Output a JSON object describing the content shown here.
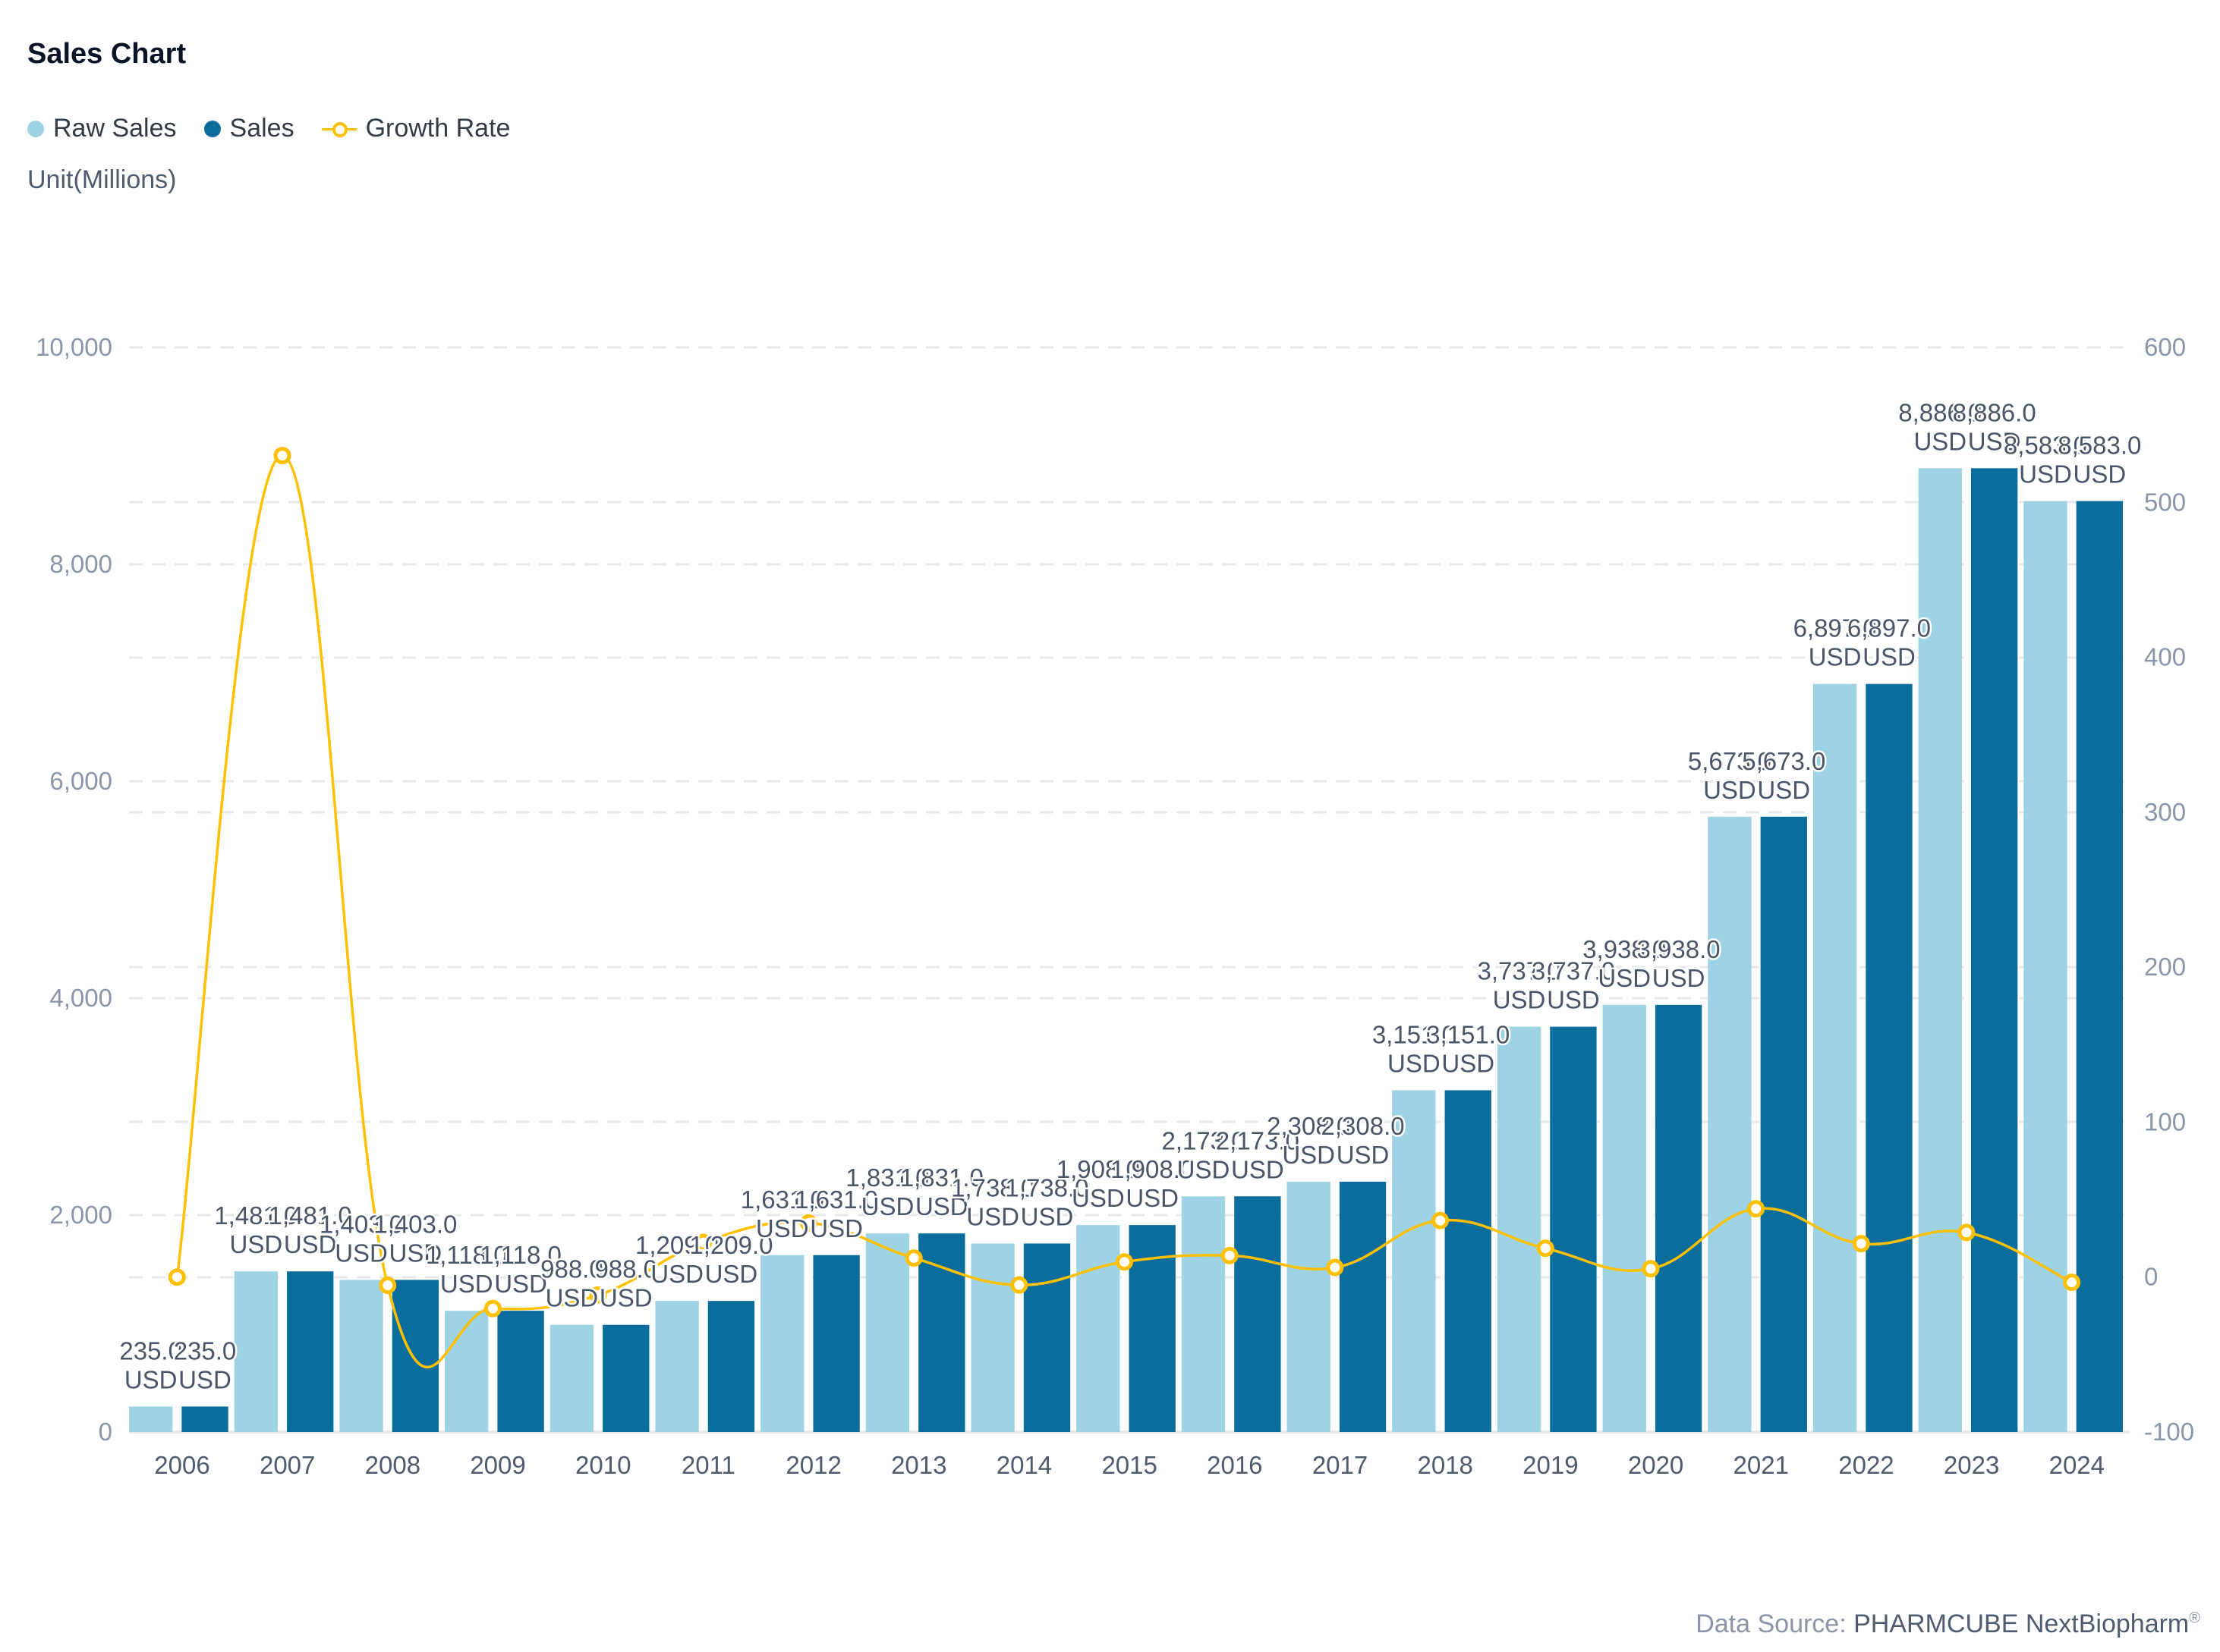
{
  "header": {
    "title": "Sales Chart",
    "unit": "Unit(Millions)"
  },
  "legend": [
    {
      "label": "Raw Sales",
      "color": "#9dd3e4",
      "shape": "dot"
    },
    {
      "label": "Sales",
      "color": "#0a6d9c",
      "shape": "dot"
    },
    {
      "label": "Growth Rate",
      "color": "#ffc000",
      "shape": "line-marker"
    }
  ],
  "footer": {
    "prefix": "Data Source:",
    "brand": "PHARMCUBE NextBiopharm",
    "mark": "®"
  },
  "chart_data": {
    "type": "bar+line",
    "title": "Sales Chart",
    "xlabel": "",
    "ylabel": "Unit(Millions)",
    "categories": [
      "2006",
      "2007",
      "2008",
      "2009",
      "2010",
      "2011",
      "2012",
      "2013",
      "2014",
      "2015",
      "2016",
      "2017",
      "2018",
      "2019",
      "2020",
      "2021",
      "2022",
      "2023",
      "2024"
    ],
    "series": [
      {
        "name": "Raw Sales",
        "type": "bar",
        "axis": "left",
        "color": "#9dd3e4",
        "values": [
          235,
          1481,
          1403,
          1118,
          988,
          1209,
          1631,
          1831,
          1738,
          1908,
          2173,
          2308,
          3151,
          3737,
          3938,
          5673,
          6897,
          8886,
          8583
        ]
      },
      {
        "name": "Sales",
        "type": "bar",
        "axis": "left",
        "color": "#0a6d9c",
        "values": [
          235,
          1481,
          1403,
          1118,
          988,
          1209,
          1631,
          1831,
          1738,
          1908,
          2173,
          2308,
          3151,
          3737,
          3938,
          5673,
          6897,
          8886,
          8583
        ]
      },
      {
        "name": "Growth Rate",
        "type": "line",
        "axis": "right",
        "color": "#ffc000",
        "smooth": true,
        "values": [
          0,
          530.2,
          -5.3,
          -20.3,
          -11.6,
          22.4,
          34.9,
          12.3,
          -5.1,
          9.8,
          13.9,
          6.2,
          36.5,
          18.6,
          5.4,
          44.1,
          21.6,
          28.8,
          -3.4
        ]
      }
    ],
    "data_label_suffix": "USD",
    "y_left": {
      "min": 0,
      "max": 10000,
      "ticks": [
        0,
        2000,
        4000,
        6000,
        8000,
        10000
      ],
      "tick_labels": [
        "0",
        "2,000",
        "4,000",
        "6,000",
        "8,000",
        "10,000"
      ]
    },
    "y_right": {
      "min": -100,
      "max": 600,
      "ticks": [
        -100,
        0,
        100,
        200,
        300,
        400,
        500,
        600
      ],
      "tick_labels": [
        "-100",
        "0",
        "100",
        "200",
        "300",
        "400",
        "500",
        "600"
      ]
    },
    "grid": true,
    "grid_style": "dashed",
    "legend_position": "top-left"
  }
}
